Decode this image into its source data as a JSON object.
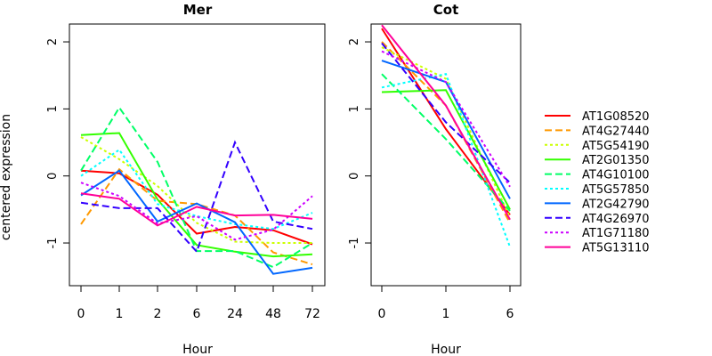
{
  "chart_data": [
    {
      "type": "line",
      "title": "Mer",
      "xlabel": "Hour",
      "ylabel": "centered expression",
      "x_ticks": [
        "0",
        "1",
        "2",
        "6",
        "24",
        "48",
        "72"
      ],
      "y_ticks": [
        "-1",
        "0",
        "1",
        "2"
      ],
      "ylim": [
        -1.6,
        2.4
      ],
      "series": [
        {
          "name": "AT1G08520",
          "color": "#ff0000",
          "dash": "solid",
          "values": [
            0.08,
            0.04,
            -0.28,
            -0.86,
            -0.76,
            -0.81,
            -1.02
          ]
        },
        {
          "name": "AT4G27440",
          "color": "#ff9900",
          "dash": "dashed",
          "values": [
            -0.72,
            0.1,
            -0.37,
            -0.42,
            -0.59,
            -1.14,
            -1.32
          ]
        },
        {
          "name": "AT5G54190",
          "color": "#ccff00",
          "dash": "dotted",
          "values": [
            0.58,
            0.25,
            -0.15,
            -0.7,
            -0.98,
            -1.0,
            -1.0
          ]
        },
        {
          "name": "AT2G01350",
          "color": "#33ff00",
          "dash": "solid",
          "values": [
            0.61,
            0.64,
            -0.35,
            -1.03,
            -1.13,
            -1.2,
            -1.17
          ]
        },
        {
          "name": "AT4G10100",
          "color": "#00ff66",
          "dash": "dashed",
          "values": [
            0.08,
            1.02,
            0.21,
            -1.12,
            -1.12,
            -1.36,
            -1.0
          ]
        },
        {
          "name": "AT5G57850",
          "color": "#00ffff",
          "dash": "dotted",
          "values": [
            0.0,
            0.39,
            -0.42,
            -0.6,
            -0.72,
            -0.79,
            -0.55
          ]
        },
        {
          "name": "AT2G42790",
          "color": "#0066ff",
          "dash": "solid",
          "values": [
            -0.29,
            0.08,
            -0.68,
            -0.41,
            -0.69,
            -1.46,
            -1.37
          ]
        },
        {
          "name": "AT4G26970",
          "color": "#3300ff",
          "dash": "dashed",
          "values": [
            -0.4,
            -0.48,
            -0.48,
            -1.13,
            0.5,
            -0.68,
            -0.79
          ]
        },
        {
          "name": "AT1G71180",
          "color": "#cc00ff",
          "dash": "dotted",
          "values": [
            -0.1,
            -0.3,
            -0.71,
            -0.6,
            -0.95,
            -0.8,
            -0.3
          ]
        },
        {
          "name": "AT5G13110",
          "color": "#ff0099",
          "dash": "solid",
          "values": [
            -0.26,
            -0.34,
            -0.74,
            -0.46,
            -0.59,
            -0.58,
            -0.64
          ]
        }
      ]
    },
    {
      "type": "line",
      "title": "Cot",
      "xlabel": "Hour",
      "x_ticks": [
        "0",
        "1",
        "6"
      ],
      "y_ticks": [
        "-1",
        "0",
        "1",
        "2"
      ],
      "ylim": [
        -1.6,
        2.4
      ],
      "series": [
        {
          "name": "AT1G08520",
          "values": [
            2.2,
            0.7,
            -0.58
          ]
        },
        {
          "name": "AT4G27440",
          "values": [
            2.0,
            1.05,
            -0.7
          ]
        },
        {
          "name": "AT5G54190",
          "values": [
            1.92,
            1.45,
            -0.62
          ]
        },
        {
          "name": "AT2G01350",
          "values": [
            1.25,
            1.28,
            -0.5
          ]
        },
        {
          "name": "AT4G10100",
          "values": [
            1.52,
            0.55,
            -0.52
          ]
        },
        {
          "name": "AT5G57850",
          "values": [
            1.32,
            1.52,
            -1.06
          ]
        },
        {
          "name": "AT2G42790",
          "values": [
            1.72,
            1.4,
            -0.34
          ]
        },
        {
          "name": "AT4G26970",
          "values": [
            1.98,
            0.8,
            -0.1
          ]
        },
        {
          "name": "AT1G71180",
          "values": [
            1.86,
            1.4,
            -0.16
          ]
        },
        {
          "name": "AT5G13110",
          "values": [
            2.25,
            1.05,
            -0.65
          ]
        }
      ]
    }
  ]
}
